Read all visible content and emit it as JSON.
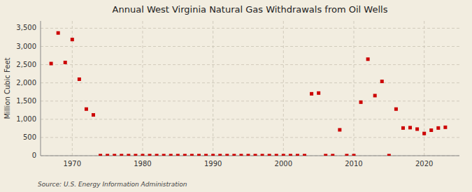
{
  "chart_data": {
    "type": "scatter",
    "title": "Annual West Virginia Natural Gas Withdrawals from Oil Wells",
    "ylabel": "Million Cubic Feet",
    "annotations": [
      "Source: U.S. Energy Information Administration"
    ],
    "color": "#cc0000",
    "marker": "square",
    "grid": true,
    "xlim": [
      1965.5,
      2025
    ],
    "ylim": [
      0,
      3700
    ],
    "xticks": [
      1970,
      1980,
      1990,
      2000,
      2010,
      2020
    ],
    "yticks": [
      0,
      500,
      {
        "value": 1000,
        "label": "1,000"
      },
      {
        "value": 1500,
        "label": "1,500"
      },
      {
        "value": 2000,
        "label": "2,000"
      },
      {
        "value": 2500,
        "label": "2,500"
      },
      {
        "value": 3000,
        "label": "3,000"
      },
      {
        "value": 3500,
        "label": "3,500"
      }
    ],
    "x": [
      1967,
      1968,
      1969,
      1970,
      1971,
      1972,
      1973,
      1974,
      1975,
      1976,
      1977,
      1978,
      1979,
      1980,
      1981,
      1982,
      1983,
      1984,
      1985,
      1986,
      1987,
      1988,
      1989,
      1990,
      1991,
      1992,
      1993,
      1994,
      1995,
      1996,
      1997,
      1998,
      1999,
      2000,
      2001,
      2002,
      2003,
      2004,
      2005,
      2006,
      2007,
      2008,
      2009,
      2010,
      2011,
      2012,
      2013,
      2014,
      2015,
      2016,
      2017,
      2018,
      2019,
      2020,
      2021,
      2022,
      2023
    ],
    "values": [
      2530,
      3370,
      2560,
      3190,
      2100,
      1280,
      1120,
      2,
      2,
      2,
      2,
      2,
      2,
      2,
      2,
      2,
      2,
      2,
      2,
      2,
      2,
      2,
      2,
      2,
      2,
      2,
      2,
      2,
      2,
      2,
      2,
      2,
      2,
      2,
      2,
      2,
      2,
      1700,
      1720,
      2,
      2,
      710,
      2,
      2,
      1470,
      2650,
      1650,
      2040,
      2,
      1280,
      760,
      770,
      730,
      610,
      700,
      760,
      780
    ]
  }
}
